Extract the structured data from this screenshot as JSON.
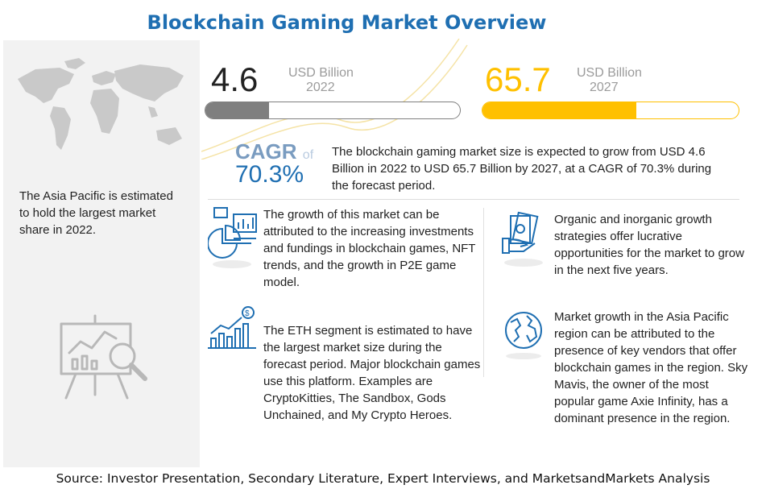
{
  "title": "Blockchain Gaming Market Overview",
  "metrics": [
    {
      "value": "4.6",
      "unit": "USD Billion",
      "year": "2022",
      "bar_fill_fraction": 0.25,
      "color": "#7f7f7f"
    },
    {
      "value": "65.7",
      "unit": "USD Billion",
      "year": "2027",
      "bar_fill_fraction": 0.6,
      "color": "#ffc000"
    }
  ],
  "cagr": {
    "label": "CAGR",
    "of": "of",
    "value": "70.3%",
    "text": "The blockchain gaming market size is expected to grow from USD 4.6 Billion in 2022 to USD 65.7 Billion by 2027, at a CAGR of 70.3% during the forecast period."
  },
  "region_text": "The Asia Pacific is estimated to hold the largest market share in 2022.",
  "insights": [
    {
      "icon": "analytics-pie-chart-icon",
      "text": "The growth of this market can be attributed to the increasing investments and fundings in blockchain games, NFT trends, and the growth in P2E game model."
    },
    {
      "icon": "money-hand-icon",
      "text": "Organic and inorganic growth strategies offer lucrative opportunities for the market to grow in the next five years."
    },
    {
      "icon": "dollar-growth-chart-icon",
      "text": "The ETH segment is estimated to have the largest market size during the forecast period. Major blockchain games use this platform. Examples are CryptoKitties, The Sandbox, Gods Unchained, and My Crypto Heroes."
    },
    {
      "icon": "globe-icon",
      "text": "Market growth in the Asia Pacific region can be attributed to the presence of key vendors that offer blockchain games in the region. Sky Mavis, the owner of the most popular game Axie Infinity, has a dominant presence in the region."
    }
  ],
  "source": "Source: Investor Presentation, Secondary Literature, Expert Interviews, and MarketsandMarkets Analysis",
  "colors": {
    "accent": "#1f6fb2",
    "gold": "#ffc000",
    "gray": "#7f7f7f"
  }
}
